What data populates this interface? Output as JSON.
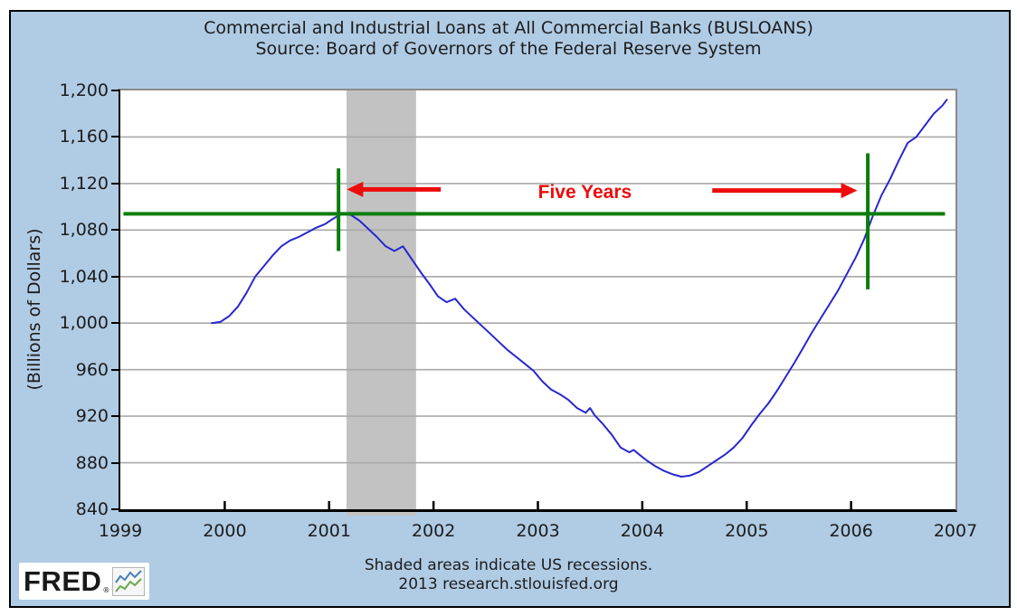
{
  "page": {
    "canvas_background": "#b0cbe4",
    "outer_border_color": "#000000",
    "plot_background": "#ffffff"
  },
  "header": {
    "title": "Commercial and Industrial Loans at All Commercial Banks (BUSLOANS)",
    "subtitle": "Source: Board of Governors of the Federal Reserve System"
  },
  "y_axis": {
    "label": "(Billions of Dollars)",
    "tick_labels": [
      "1,200",
      "1,160",
      "1,120",
      "1,080",
      "1,040",
      "1,000",
      "960",
      "920",
      "880",
      "840"
    ],
    "tick_values": [
      1200,
      1160,
      1120,
      1080,
      1040,
      1000,
      960,
      920,
      880,
      840
    ]
  },
  "x_axis": {
    "tick_labels": [
      "1999",
      "2000",
      "2001",
      "2002",
      "2003",
      "2004",
      "2005",
      "2006",
      "2007"
    ],
    "tick_values": [
      1999,
      2000,
      2001,
      2002,
      2003,
      2004,
      2005,
      2006,
      2007
    ]
  },
  "footer": {
    "line1": "Shaded areas indicate US recessions.",
    "line2": "2013 research.stlouisfed.org"
  },
  "logo": {
    "text": "FRED",
    "registered_mark": "®"
  },
  "chart_data": {
    "type": "line",
    "title": "Commercial and Industrial Loans at All Commercial Banks (BUSLOANS)",
    "subtitle": "Source: Board of Governors of the Federal Reserve System",
    "series_id": "BUSLOANS",
    "ylabel": "(Billions of Dollars)",
    "xlim": [
      1999,
      2007
    ],
    "ylim": [
      840,
      1200
    ],
    "grid": "horizontal",
    "gridline_values": [
      1160,
      1120,
      1080,
      1040,
      1000,
      960,
      920,
      880
    ],
    "gridline_color": "#a9a9a9",
    "line_color": "#2727cf",
    "recession_band": {
      "start": 2001.167,
      "end": 2001.833,
      "color": "#c2c2c2"
    },
    "series": [
      {
        "name": "BUSLOANS",
        "points": [
          [
            1999.875,
            1000
          ],
          [
            1999.958,
            1001
          ],
          [
            2000.042,
            1006
          ],
          [
            2000.125,
            1014
          ],
          [
            2000.208,
            1026
          ],
          [
            2000.292,
            1040
          ],
          [
            2000.375,
            1049
          ],
          [
            2000.458,
            1058
          ],
          [
            2000.542,
            1066
          ],
          [
            2000.625,
            1071
          ],
          [
            2000.708,
            1074
          ],
          [
            2000.792,
            1078
          ],
          [
            2000.875,
            1082
          ],
          [
            2000.958,
            1085
          ],
          [
            2001.042,
            1090
          ],
          [
            2001.125,
            1094
          ],
          [
            2001.208,
            1093
          ],
          [
            2001.292,
            1088
          ],
          [
            2001.375,
            1081
          ],
          [
            2001.458,
            1074
          ],
          [
            2001.542,
            1066
          ],
          [
            2001.625,
            1062
          ],
          [
            2001.708,
            1066
          ],
          [
            2001.792,
            1055
          ],
          [
            2001.875,
            1044
          ],
          [
            2001.958,
            1034
          ],
          [
            2002.042,
            1023
          ],
          [
            2002.125,
            1018
          ],
          [
            2002.208,
            1021
          ],
          [
            2002.292,
            1012
          ],
          [
            2002.375,
            1005
          ],
          [
            2002.458,
            998
          ],
          [
            2002.542,
            991
          ],
          [
            2002.625,
            984
          ],
          [
            2002.708,
            977
          ],
          [
            2002.792,
            971
          ],
          [
            2002.875,
            965
          ],
          [
            2002.958,
            959
          ],
          [
            2003.042,
            950
          ],
          [
            2003.125,
            943
          ],
          [
            2003.208,
            939
          ],
          [
            2003.292,
            934
          ],
          [
            2003.375,
            927
          ],
          [
            2003.458,
            923
          ],
          [
            2003.5,
            927
          ],
          [
            2003.542,
            921
          ],
          [
            2003.625,
            913
          ],
          [
            2003.708,
            904
          ],
          [
            2003.792,
            893
          ],
          [
            2003.875,
            889
          ],
          [
            2003.917,
            891
          ],
          [
            2003.958,
            888
          ],
          [
            2004.042,
            882
          ],
          [
            2004.125,
            877
          ],
          [
            2004.208,
            873
          ],
          [
            2004.292,
            870
          ],
          [
            2004.375,
            868
          ],
          [
            2004.458,
            869
          ],
          [
            2004.542,
            872
          ],
          [
            2004.625,
            877
          ],
          [
            2004.708,
            882
          ],
          [
            2004.792,
            887
          ],
          [
            2004.875,
            893
          ],
          [
            2004.958,
            901
          ],
          [
            2005.042,
            912
          ],
          [
            2005.125,
            922
          ],
          [
            2005.208,
            931
          ],
          [
            2005.292,
            942
          ],
          [
            2005.375,
            954
          ],
          [
            2005.458,
            966
          ],
          [
            2005.542,
            979
          ],
          [
            2005.625,
            992
          ],
          [
            2005.708,
            1004
          ],
          [
            2005.792,
            1016
          ],
          [
            2005.875,
            1028
          ],
          [
            2005.958,
            1042
          ],
          [
            2006.042,
            1056
          ],
          [
            2006.125,
            1072
          ],
          [
            2006.208,
            1092
          ],
          [
            2006.292,
            1110
          ],
          [
            2006.375,
            1124
          ],
          [
            2006.458,
            1140
          ],
          [
            2006.542,
            1155
          ],
          [
            2006.625,
            1160
          ],
          [
            2006.708,
            1170
          ],
          [
            2006.792,
            1180
          ],
          [
            2006.875,
            1187
          ],
          [
            2006.917,
            1192
          ]
        ]
      }
    ],
    "annotations": {
      "label": {
        "text": "Five Years",
        "color": "#ee0b0b",
        "x": 2003.45,
        "y": 1112
      },
      "horizontal_line": {
        "value": 1094,
        "x_start": 1999.03,
        "x_end": 2006.9,
        "color": "#0a7d0a",
        "width": 4
      },
      "vertical_lines": [
        {
          "x": 2001.09,
          "y_start": 1062,
          "y_end": 1133,
          "color": "#0a7d0a",
          "width": 4
        },
        {
          "x": 2006.16,
          "y_start": 1029,
          "y_end": 1146,
          "color": "#0a7d0a",
          "width": 4
        }
      ],
      "arrows": [
        {
          "from_x": 2002.07,
          "to_x": 2001.17,
          "y": 1115,
          "direction": "left",
          "color": "#ee0b0b"
        },
        {
          "from_x": 2004.67,
          "to_x": 2006.06,
          "y": 1114,
          "direction": "right",
          "color": "#ee0b0b"
        }
      ]
    }
  }
}
